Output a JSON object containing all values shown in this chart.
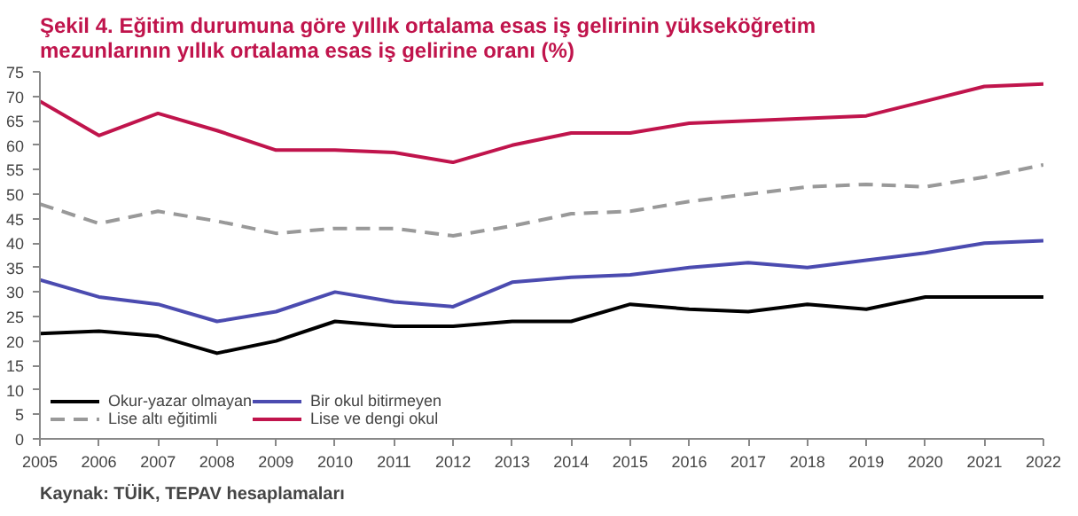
{
  "chart_data": {
    "type": "line",
    "title": "Şekil 4. Eğitim durumuna göre yıllık ortalama esas iş gelirinin yükseköğretim\nmezunlarının yıllık ortalama esas iş gelirine oranı (%)",
    "x": [
      2005,
      2006,
      2007,
      2008,
      2009,
      2010,
      2011,
      2012,
      2013,
      2014,
      2015,
      2016,
      2017,
      2018,
      2019,
      2020,
      2021,
      2022
    ],
    "series": [
      {
        "name": "Okur-yazar olmayan",
        "color": "#000000",
        "line_style": "solid",
        "values": [
          21.5,
          22,
          21,
          17.5,
          20,
          24,
          23,
          23,
          24,
          24,
          27.5,
          26.5,
          26,
          27.5,
          26.5,
          29,
          29,
          29
        ]
      },
      {
        "name": "Lise altı eğitimli",
        "color": "#999999",
        "line_style": "dashed",
        "values": [
          48,
          44,
          46.5,
          44.5,
          42,
          43,
          43,
          41.5,
          43.5,
          46,
          46.5,
          48.5,
          50,
          51.5,
          52,
          51.5,
          53.5,
          56
        ]
      },
      {
        "name": "Bir okul bitirmeyen",
        "color": "#4b4bb0",
        "line_style": "solid",
        "values": [
          32.5,
          29,
          27.5,
          24,
          26,
          30,
          28,
          27,
          32,
          33,
          33.5,
          35,
          36,
          35,
          36.5,
          38,
          40,
          40.5
        ]
      },
      {
        "name": "Lise ve dengi okul",
        "color": "#c0144c",
        "line_style": "solid",
        "values": [
          69,
          62,
          66.5,
          63,
          59,
          59,
          58.5,
          56.5,
          60,
          62.5,
          62.5,
          64.5,
          65,
          65.5,
          66,
          69,
          72,
          72.5
        ]
      }
    ],
    "xlim": [
      2005,
      2022
    ],
    "xticks": [
      2005,
      2006,
      2007,
      2008,
      2009,
      2010,
      2011,
      2012,
      2013,
      2014,
      2015,
      2016,
      2017,
      2018,
      2019,
      2020,
      2021,
      2022
    ],
    "ylim": [
      0,
      75
    ],
    "yticks": [
      0,
      5,
      10,
      15,
      20,
      25,
      30,
      35,
      40,
      45,
      50,
      55,
      60,
      65,
      70,
      75
    ],
    "grid": false,
    "legend": "bottom left",
    "marker": "none",
    "annotations": [
      "Kaynak: TÜİK, TEPAV hesaplamaları"
    ]
  }
}
